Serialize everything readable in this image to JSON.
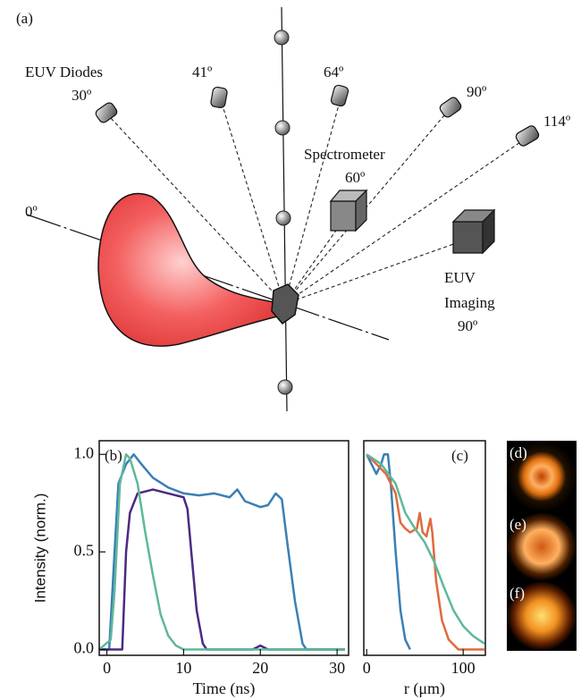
{
  "diagram": {
    "panel_label": "(a)",
    "diodes_label": "EUV Diodes",
    "angle_30": "30º",
    "angle_41": "41º",
    "angle_64": "64º",
    "angle_90": "90º",
    "angle_114": "114º",
    "spectrometer_label": "Spectrometer",
    "spectrometer_angle": "60º",
    "axis_angle": "0º",
    "imaging_label_1": "EUV",
    "imaging_label_2": "Imaging",
    "imaging_angle": "90º"
  },
  "chart_data": [
    {
      "type": "line",
      "panel_label": "(b)",
      "x_label": "Time (ns)",
      "y_label": "Intensity (norm.)",
      "xlim": [
        -1,
        31.5
      ],
      "xticks": [
        0,
        10,
        20,
        30
      ],
      "ylim": [
        -0.03,
        1.07
      ],
      "yticks": [
        {
          "value": 0,
          "label": "0.0"
        },
        {
          "value": 0.5,
          "label": "0.5"
        },
        {
          "value": 1,
          "label": "1.0"
        }
      ],
      "series": [
        {
          "color": "#3a7fb5",
          "x": [
            -1,
            0.3,
            1,
            1.5,
            2.5,
            3.5,
            4.5,
            6,
            8,
            10,
            12,
            14,
            16,
            17,
            18,
            20,
            21,
            22,
            22.8,
            23.5,
            24.5,
            25.5,
            26,
            31
          ],
          "values": [
            0,
            0,
            0.5,
            0.85,
            0.95,
            1.0,
            0.95,
            0.88,
            0.83,
            0.8,
            0.79,
            0.8,
            0.78,
            0.82,
            0.76,
            0.73,
            0.74,
            0.8,
            0.77,
            0.55,
            0.25,
            0.03,
            0,
            0
          ]
        },
        {
          "color": "#4b2a83",
          "x": [
            -1,
            2,
            2.5,
            3,
            4,
            6,
            8,
            10,
            10.5,
            11,
            11.7,
            12.5,
            13,
            19,
            20,
            21,
            31
          ],
          "values": [
            0,
            0,
            0.5,
            0.7,
            0.8,
            0.82,
            0.8,
            0.78,
            0.72,
            0.5,
            0.2,
            0.03,
            0,
            0,
            0.02,
            0,
            0
          ]
        },
        {
          "color": "#5fb89a",
          "x": [
            -1,
            0.5,
            1,
            1.7,
            2.5,
            3,
            4,
            5,
            6,
            7,
            8,
            9,
            10,
            31
          ],
          "values": [
            0,
            0.05,
            0.3,
            0.85,
            1.0,
            0.98,
            0.85,
            0.6,
            0.38,
            0.18,
            0.07,
            0.02,
            0,
            0
          ]
        }
      ]
    },
    {
      "type": "line",
      "panel_label": "(c)",
      "x_label": "r (μm)",
      "xlim": [
        -3,
        123
      ],
      "xticks": [
        0,
        100
      ],
      "ylim": [
        -0.03,
        1.07
      ],
      "series": [
        {
          "color": "#3a7fb5",
          "x": [
            0,
            5,
            10,
            15,
            18,
            22,
            25,
            30,
            35,
            40,
            45
          ],
          "values": [
            1.0,
            0.95,
            0.9,
            0.95,
            1.0,
            1.0,
            0.85,
            0.5,
            0.2,
            0.05,
            0
          ]
        },
        {
          "color": "#e06a3c",
          "x": [
            0,
            10,
            20,
            30,
            35,
            40,
            45,
            52,
            55,
            58,
            62,
            66,
            68,
            72,
            78,
            85,
            95,
            122
          ],
          "values": [
            1.0,
            0.95,
            0.9,
            0.8,
            0.65,
            0.62,
            0.6,
            0.62,
            0.7,
            0.6,
            0.58,
            0.67,
            0.6,
            0.35,
            0.15,
            0.05,
            0,
            0
          ]
        },
        {
          "color": "#5fb89a",
          "x": [
            0,
            15,
            30,
            40,
            50,
            60,
            70,
            80,
            90,
            100,
            110,
            122
          ],
          "values": [
            1.0,
            0.95,
            0.85,
            0.7,
            0.62,
            0.55,
            0.45,
            0.32,
            0.2,
            0.12,
            0.07,
            0.03
          ]
        }
      ]
    }
  ],
  "images": {
    "labels": [
      "(d)",
      "(e)",
      "(f)"
    ]
  }
}
